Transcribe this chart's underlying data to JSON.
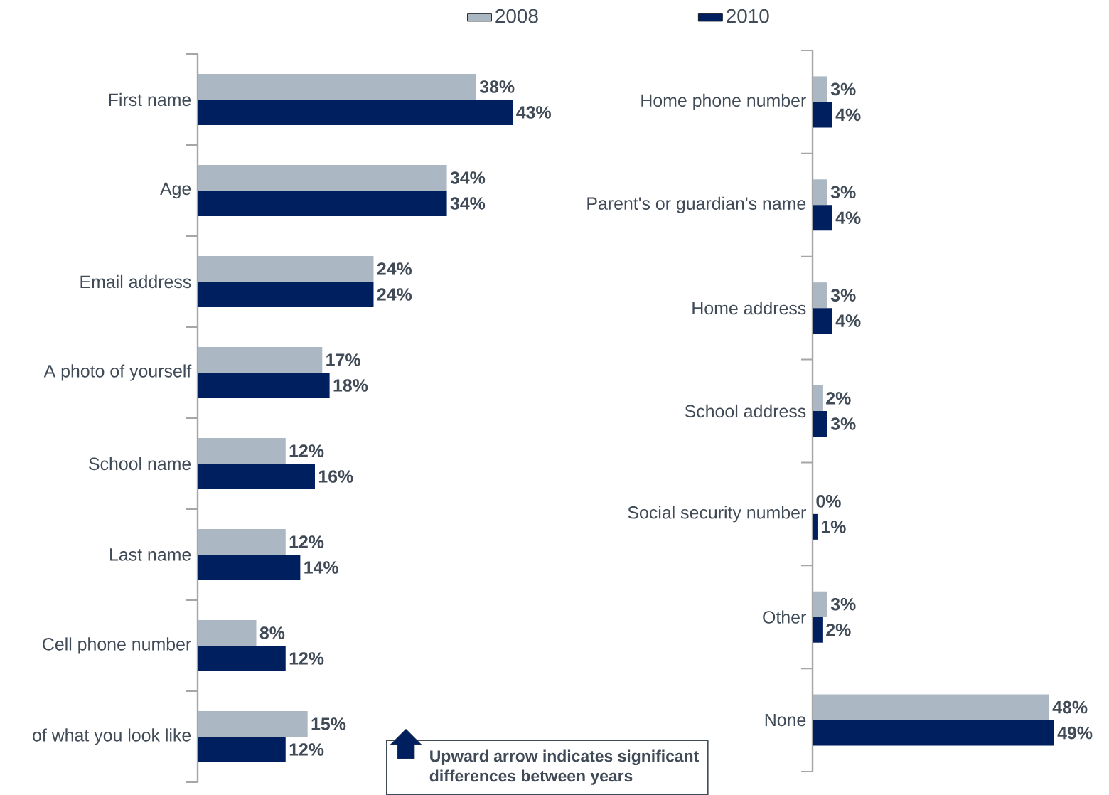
{
  "chart_data": [
    {
      "type": "bar",
      "orientation": "horizontal",
      "legend": "top",
      "categories": [
        "First name",
        "Age",
        "Email address",
        "A photo of yourself",
        "School name",
        "Last name",
        "Cell phone number",
        "of what you look like"
      ],
      "series": [
        {
          "name": "2008",
          "color": "#abb8c3",
          "values": [
            38,
            34,
            24,
            17,
            12,
            12,
            8,
            15
          ],
          "value_labels": [
            "38%",
            "34%",
            "24%",
            "17%",
            "12%",
            "12%",
            "8%",
            "15%"
          ]
        },
        {
          "name": "2010",
          "color": "#001f5f",
          "values": [
            43,
            34,
            24,
            18,
            16,
            14,
            12,
            12
          ],
          "value_labels": [
            "43%",
            "34%",
            "24%",
            "18%",
            "16%",
            "14%",
            "12%",
            "12%"
          ]
        }
      ],
      "annotations": [
        "Upward arrow indicates significant differences between years"
      ]
    },
    {
      "type": "bar",
      "orientation": "horizontal",
      "categories": [
        "Home phone number",
        "Parent's or guardian's name",
        "Home address",
        "School address",
        "Social security number",
        "Other",
        "None"
      ],
      "series": [
        {
          "color": "#abb8c3",
          "values": [
            3,
            3,
            3,
            2,
            0,
            3,
            48
          ],
          "value_labels": [
            "3%",
            "3%",
            "3%",
            "2%",
            "0%",
            "3%",
            "48%"
          ]
        },
        {
          "color": "#001f5f",
          "values": [
            4,
            4,
            4,
            3,
            1,
            2,
            49
          ],
          "value_labels": [
            "4%",
            "4%",
            "4%",
            "3%",
            "1%",
            "2%",
            "49%"
          ]
        }
      ]
    }
  ]
}
